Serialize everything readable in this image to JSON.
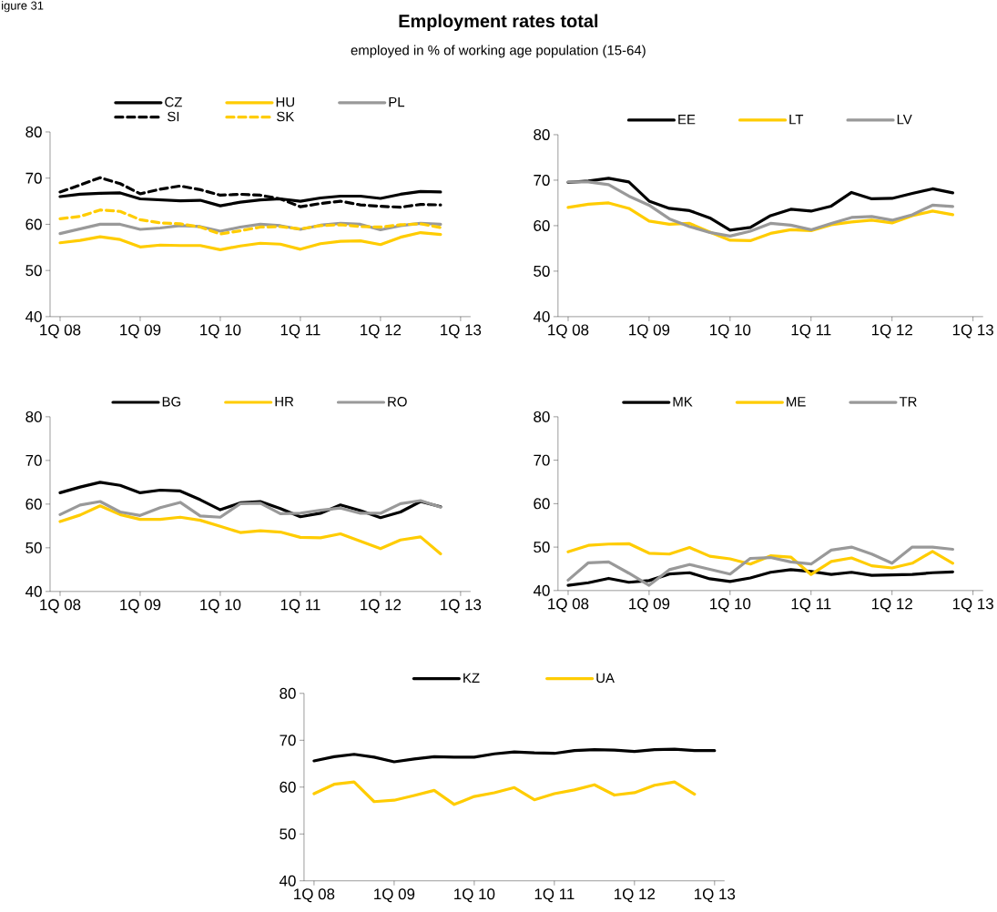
{
  "chart_data": [
    {
      "type": "line",
      "title": "Employment rates total",
      "subtitle": "employed in % of working age population (15-64)",
      "annotations": [
        "igure 31"
      ],
      "legend": "top",
      "categories": [
        "1Q 08",
        null,
        null,
        null,
        "1Q 09",
        null,
        null,
        null,
        "1Q 10",
        null,
        null,
        null,
        "1Q 11",
        null,
        null,
        null,
        "1Q 12",
        null,
        null,
        null,
        "1Q 13"
      ],
      "ylim": [
        40,
        80
      ],
      "yticks": [
        40,
        50,
        60,
        70,
        80
      ],
      "series": [
        {
          "name": "CZ",
          "color": "#000000",
          "line_style": "solid",
          "values": [
            66.0,
            66.5,
            66.7,
            66.8,
            65.5,
            65.3,
            65.1,
            65.2,
            64.0,
            64.8,
            65.3,
            65.5,
            65.0,
            65.7,
            66.1,
            66.1,
            65.6,
            66.5,
            67.1,
            67.0,
            null
          ]
        },
        {
          "name": "HU",
          "color": "#ffcc00",
          "line_style": "solid",
          "values": [
            56.0,
            56.5,
            57.3,
            56.7,
            55.1,
            55.5,
            55.4,
            55.4,
            54.5,
            55.3,
            55.9,
            55.7,
            54.6,
            55.8,
            56.3,
            56.4,
            55.6,
            57.2,
            58.2,
            57.8,
            null
          ]
        },
        {
          "name": "PL",
          "color": "#999999",
          "line_style": "solid",
          "values": [
            58.0,
            59.0,
            60.0,
            60.0,
            58.9,
            59.2,
            59.7,
            59.5,
            58.5,
            59.4,
            60.0,
            59.7,
            58.9,
            59.8,
            60.2,
            60.0,
            58.8,
            59.7,
            60.2,
            60.0,
            null
          ]
        },
        {
          "name": "SI",
          "color": "#000000",
          "line_style": "dashed",
          "values": [
            67.0,
            68.5,
            70.1,
            68.8,
            66.6,
            67.6,
            68.3,
            67.5,
            66.3,
            66.5,
            66.3,
            65.5,
            63.8,
            64.5,
            65.0,
            64.2,
            63.9,
            63.7,
            64.3,
            64.2,
            null
          ]
        },
        {
          "name": "SK",
          "color": "#ffcc00",
          "line_style": "dashed",
          "values": [
            61.2,
            61.7,
            63.1,
            62.8,
            61.0,
            60.3,
            60.1,
            59.4,
            57.9,
            58.6,
            59.4,
            59.5,
            59.0,
            59.7,
            59.9,
            59.5,
            59.4,
            59.9,
            60.1,
            59.3,
            null
          ]
        }
      ]
    },
    {
      "type": "line",
      "legend": "top",
      "categories": [
        "1Q 08",
        null,
        null,
        null,
        "1Q 09",
        null,
        null,
        null,
        "1Q 10",
        null,
        null,
        null,
        "1Q 11",
        null,
        null,
        null,
        "1Q 12",
        null,
        null,
        null,
        "1Q 13"
      ],
      "ylim": [
        40,
        80
      ],
      "yticks": [
        40,
        50,
        60,
        70,
        80
      ],
      "series": [
        {
          "name": "EE",
          "color": "#000000",
          "values": [
            69.5,
            69.8,
            70.4,
            69.6,
            65.4,
            63.8,
            63.3,
            61.7,
            59.0,
            59.6,
            62.2,
            63.6,
            63.2,
            64.3,
            67.3,
            65.9,
            66.0,
            67.1,
            68.1,
            67.2,
            null
          ]
        },
        {
          "name": "LT",
          "color": "#ffcc00",
          "values": [
            64.0,
            64.7,
            65.0,
            63.8,
            61.0,
            60.3,
            60.5,
            58.6,
            56.8,
            56.7,
            58.3,
            59.1,
            58.9,
            60.2,
            60.8,
            61.2,
            60.6,
            62.2,
            63.2,
            62.4,
            null
          ]
        },
        {
          "name": "LV",
          "color": "#999999",
          "values": [
            69.6,
            69.6,
            69.0,
            66.5,
            64.5,
            61.5,
            59.8,
            58.5,
            57.7,
            58.8,
            60.5,
            60.1,
            59.1,
            60.5,
            61.8,
            62.0,
            61.2,
            62.4,
            64.5,
            64.2,
            null
          ]
        }
      ]
    },
    {
      "type": "line",
      "legend": "top",
      "categories": [
        "1Q 08",
        null,
        null,
        null,
        "1Q 09",
        null,
        null,
        null,
        "1Q 10",
        null,
        null,
        null,
        "1Q 11",
        null,
        null,
        null,
        "1Q 12",
        null,
        null,
        null,
        "1Q 13"
      ],
      "ylim": [
        40,
        80
      ],
      "yticks": [
        40,
        50,
        60,
        70,
        80
      ],
      "series": [
        {
          "name": "BG",
          "color": "#000000",
          "values": [
            62.6,
            63.9,
            65.0,
            64.3,
            62.6,
            63.2,
            63.0,
            61.0,
            58.7,
            60.3,
            60.6,
            59.0,
            57.1,
            57.9,
            59.8,
            58.5,
            56.9,
            58.2,
            60.6,
            59.4,
            null
          ]
        },
        {
          "name": "HR",
          "color": "#ffcc00",
          "values": [
            56.0,
            57.5,
            59.6,
            57.6,
            56.5,
            56.5,
            57.0,
            56.3,
            54.9,
            53.5,
            53.9,
            53.6,
            52.4,
            52.3,
            53.2,
            51.5,
            49.8,
            51.8,
            52.5,
            48.6,
            null
          ]
        },
        {
          "name": "RO",
          "color": "#999999",
          "values": [
            57.6,
            59.8,
            60.6,
            58.2,
            57.4,
            59.2,
            60.4,
            57.3,
            57.0,
            60.1,
            60.2,
            57.8,
            57.9,
            58.6,
            59.1,
            57.9,
            57.9,
            60.1,
            60.8,
            59.3,
            null
          ]
        }
      ]
    },
    {
      "type": "line",
      "legend": "top",
      "categories": [
        "1Q 08",
        null,
        null,
        null,
        "1Q 09",
        null,
        null,
        null,
        "1Q 10",
        null,
        null,
        null,
        "1Q 11",
        null,
        null,
        null,
        "1Q 12",
        null,
        null,
        null,
        "1Q 13"
      ],
      "ylim": [
        40,
        80
      ],
      "yticks": [
        40,
        50,
        60,
        70,
        80
      ],
      "series": [
        {
          "name": "MK",
          "color": "#000000",
          "values": [
            41.2,
            41.8,
            42.8,
            41.9,
            42.3,
            43.8,
            44.1,
            42.7,
            42.1,
            42.9,
            44.2,
            44.8,
            44.4,
            43.7,
            44.2,
            43.5,
            43.6,
            43.7,
            44.1,
            44.3,
            null
          ]
        },
        {
          "name": "ME",
          "color": "#ffcc00",
          "values": [
            48.9,
            50.4,
            50.7,
            50.8,
            48.6,
            48.4,
            49.9,
            47.9,
            47.3,
            46.1,
            48.0,
            47.7,
            43.7,
            46.7,
            47.5,
            45.7,
            45.2,
            46.3,
            49.0,
            46.3,
            null
          ]
        },
        {
          "name": "TR",
          "color": "#999999",
          "values": [
            42.4,
            46.4,
            46.6,
            44.0,
            41.2,
            44.8,
            46.0,
            44.9,
            43.8,
            47.4,
            47.6,
            46.6,
            46.1,
            49.3,
            50.0,
            48.4,
            46.3,
            50.0,
            50.0,
            49.5,
            null
          ]
        }
      ]
    },
    {
      "type": "line",
      "legend": "top",
      "categories": [
        "1Q 08",
        null,
        null,
        null,
        "1Q 09",
        null,
        null,
        null,
        "1Q 10",
        null,
        null,
        null,
        "1Q 11",
        null,
        null,
        null,
        "1Q 12",
        null,
        null,
        null,
        "1Q 13"
      ],
      "ylim": [
        40,
        80
      ],
      "yticks": [
        40,
        50,
        60,
        70,
        80
      ],
      "series": [
        {
          "name": "KZ",
          "color": "#000000",
          "values": [
            65.6,
            66.5,
            67.0,
            66.4,
            65.4,
            66.0,
            66.5,
            66.4,
            66.4,
            67.1,
            67.5,
            67.3,
            67.2,
            67.8,
            68.0,
            67.9,
            67.6,
            68.0,
            68.1,
            67.8,
            67.8
          ]
        },
        {
          "name": "UA",
          "color": "#ffcc00",
          "values": [
            58.6,
            60.6,
            61.1,
            56.9,
            57.2,
            58.2,
            59.3,
            56.3,
            58.0,
            58.8,
            59.9,
            57.3,
            58.6,
            59.4,
            60.5,
            58.3,
            58.8,
            60.4,
            61.1,
            58.5,
            null
          ]
        }
      ]
    }
  ]
}
